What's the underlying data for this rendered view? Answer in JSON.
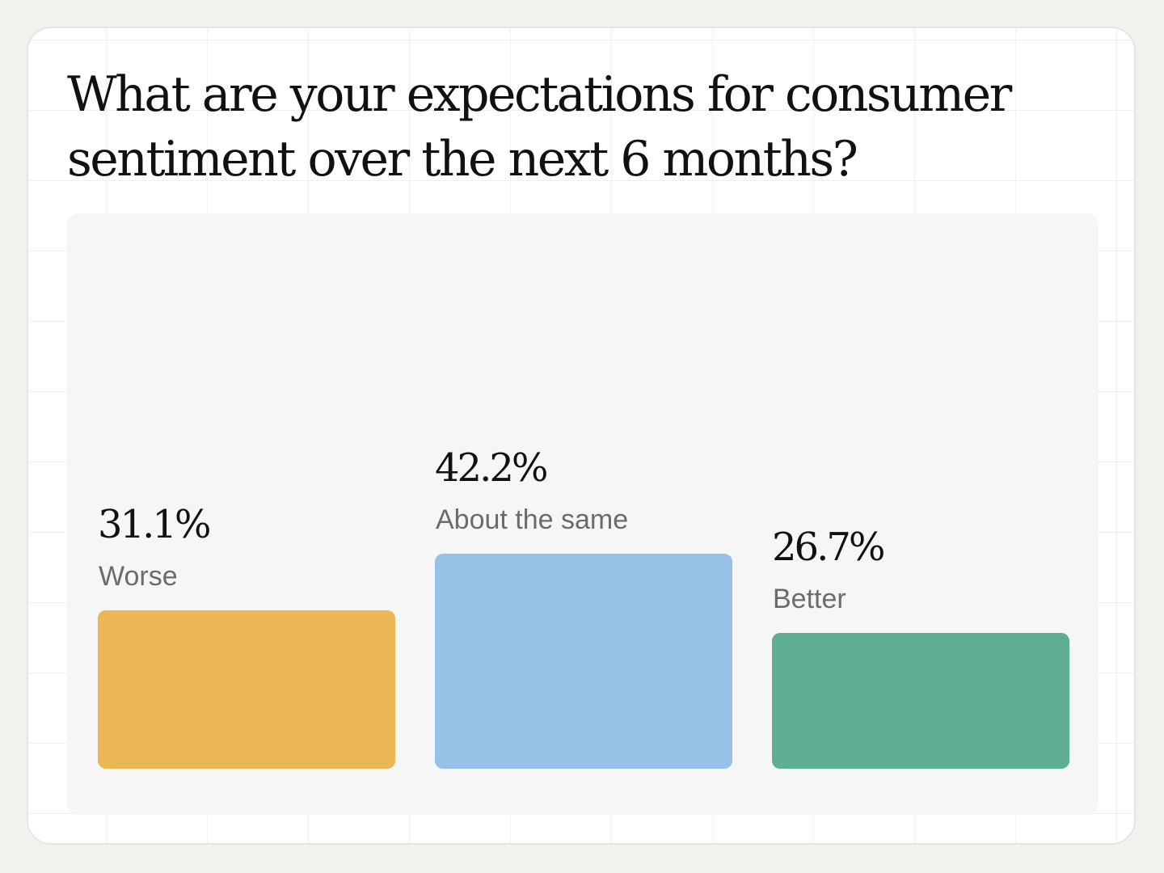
{
  "chart_data": {
    "type": "bar",
    "title": "What are your expectations for consumer sentiment over the next 6 months?",
    "categories": [
      "Worse",
      "About the same",
      "Better"
    ],
    "values": [
      31.1,
      42.2,
      26.7
    ],
    "value_labels": [
      "31.1%",
      "42.2%",
      "26.7%"
    ],
    "colors": [
      "#ebb754",
      "#97c1e7",
      "#5fae91"
    ],
    "xlabel": "",
    "ylabel": "",
    "ylim": [
      0,
      100
    ],
    "grid": false
  }
}
